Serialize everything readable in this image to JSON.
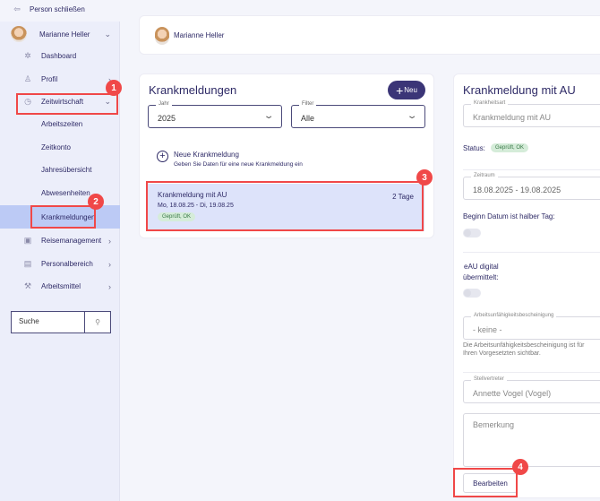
{
  "sidebar": {
    "close_person": "Person schließen",
    "user_name": "Marianne Heller",
    "items": [
      {
        "label": "Dashboard",
        "icon": "dashboard-icon"
      },
      {
        "label": "Profil",
        "icon": "person-icon"
      },
      {
        "label": "Zeitwirtschaft",
        "icon": "stopwatch-icon"
      },
      {
        "label": "Arbeitszeiten"
      },
      {
        "label": "Zeitkonto"
      },
      {
        "label": "Jahresübersicht"
      },
      {
        "label": "Abwesenheiten"
      },
      {
        "label": "Krankmeldungen",
        "selected": true
      },
      {
        "label": "Reisemanagement",
        "icon": "suitcase-icon"
      },
      {
        "label": "Personalbereich",
        "icon": "folder-person-icon"
      },
      {
        "label": "Arbeitsmittel",
        "icon": "tools-icon"
      }
    ],
    "search_placeholder": "Suche"
  },
  "header": {
    "user_name": "Marianne Heller"
  },
  "list": {
    "title": "Krankmeldungen",
    "new_button": "Neu",
    "year_label": "Jahr",
    "year_value": "2025",
    "filter_label": "Filter",
    "filter_value": "Alle",
    "new_entry_title": "Neue Krankmeldung",
    "new_entry_subtitle": "Geben Sie Daten für eine neue Krankmeldung ein",
    "entries": [
      {
        "title": "Krankmeldung mit AU",
        "days": "2 Tage",
        "dates": "Mo, 18.08.25 - Di, 19.08.25",
        "status": "Geprüft, OK"
      }
    ]
  },
  "detail": {
    "title": "Krankmeldung mit AU",
    "type_label": "Krankheitsart",
    "type_value": "Krankmeldung mit AU",
    "status_label": "Status:",
    "status_value": "Geprüft, OK",
    "period_label": "Zeitraum",
    "period_value": "18.08.2025 - 19.08.2025",
    "half_day_label": "Beginn Datum ist halber Tag:",
    "half_day": false,
    "eau_label_1": "eAU digital",
    "eau_label_2": "übermittelt:",
    "eau": false,
    "certificate_label": "Arbeitsunfähigkeitsbescheinigung",
    "certificate_value": "- keine -",
    "certificate_hint_1": "Die Arbeitsunfähigkeitsbescheinigung ist für Ihren",
    "certificate_hint_2": "Vorgesetzten sichtbar.",
    "deputy_label": "Stellvertreter",
    "deputy_value": "Annette Vogel (Vogel)",
    "remark_placeholder": "Bemerkung",
    "edit_button": "Bearbeiten"
  },
  "annotations": [
    "1",
    "2",
    "3",
    "4"
  ],
  "colors": {
    "accent": "#3b3577",
    "selected": "#bccaf5",
    "annotation": "#f04848",
    "status_ok": "#d5ecd9"
  }
}
